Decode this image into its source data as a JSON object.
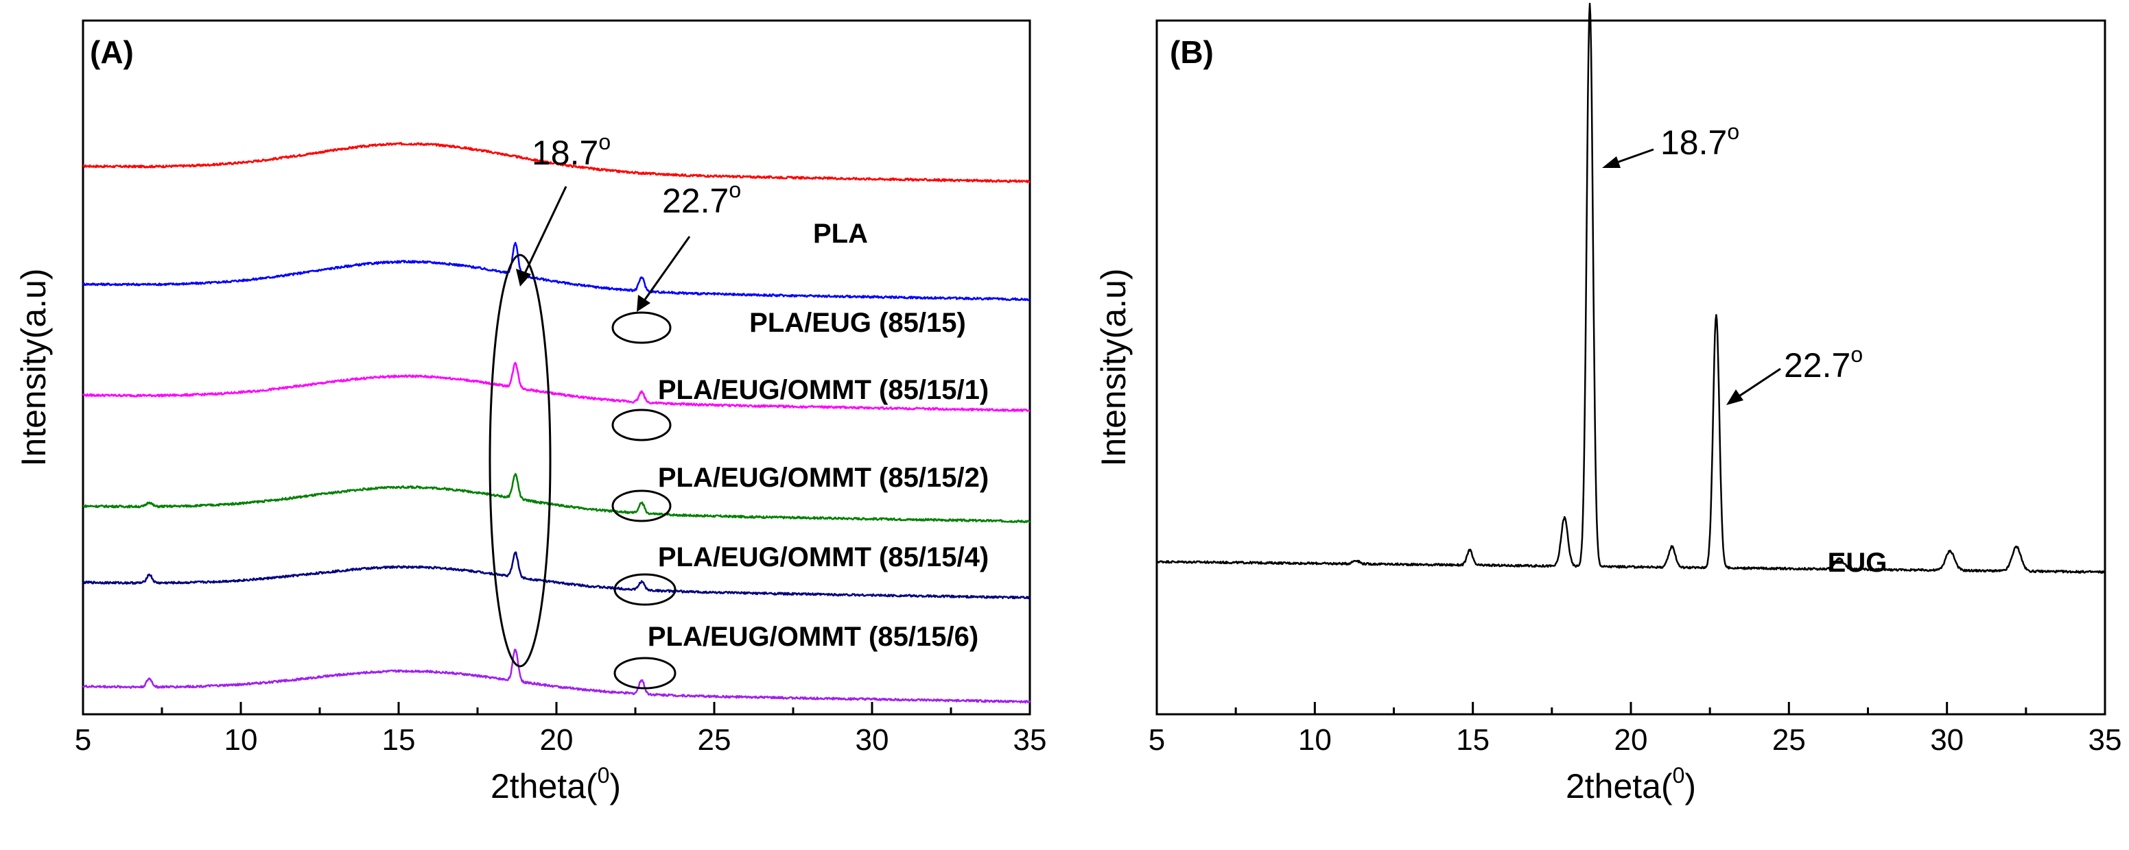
{
  "chart_data": [
    {
      "panel": "(A)",
      "type": "line",
      "xlabel": "2theta(",
      "xlabel_sup": "0",
      "xlabel_close": ")",
      "ylabel": "Intensity(a.u)",
      "xlim": [
        5,
        35
      ],
      "ylim": [
        0,
        10
      ],
      "xticks": [
        5,
        10,
        15,
        20,
        25,
        30,
        35
      ],
      "xtick_labels": [
        "5",
        "10",
        "15",
        "20",
        "25",
        "30",
        "35"
      ],
      "series": [
        {
          "name": "PLA",
          "color": "#ff0000",
          "baseline": 7.9,
          "drift": 0.22,
          "hump": 0.4,
          "peaks": []
        },
        {
          "name": "PLA/EUG (85/15)",
          "color": "#0000ff",
          "baseline": 6.2,
          "drift": 0.22,
          "hump": 0.4,
          "peaks": [
            {
              "x": 18.7,
              "h": 0.45
            },
            {
              "x": 22.7,
              "h": 0.2
            }
          ]
        },
        {
          "name": "PLA/EUG/OMMT (85/15/1)",
          "color": "#ff00ff",
          "baseline": 4.6,
          "drift": 0.22,
          "hump": 0.35,
          "peaks": [
            {
              "x": 18.7,
              "h": 0.35
            },
            {
              "x": 22.7,
              "h": 0.15
            }
          ]
        },
        {
          "name": "PLA/EUG/OMMT (85/15/2)",
          "color": "#008000",
          "baseline": 3.0,
          "drift": 0.22,
          "hump": 0.35,
          "peaks": [
            {
              "x": 7.1,
              "h": 0.06
            },
            {
              "x": 18.7,
              "h": 0.35
            },
            {
              "x": 22.7,
              "h": 0.15
            }
          ]
        },
        {
          "name": "PLA/EUG/OMMT (85/15/4)",
          "color": "#000080",
          "baseline": 1.9,
          "drift": 0.22,
          "hump": 0.3,
          "peaks": [
            {
              "x": 7.1,
              "h": 0.12
            },
            {
              "x": 18.7,
              "h": 0.35
            },
            {
              "x": 22.7,
              "h": 0.12
            }
          ]
        },
        {
          "name": "PLA/EUG/OMMT (85/15/6)",
          "color": "#a020f0",
          "baseline": 0.4,
          "drift": 0.22,
          "hump": 0.3,
          "peaks": [
            {
              "x": 7.1,
              "h": 0.12
            },
            {
              "x": 18.7,
              "h": 0.45
            },
            {
              "x": 22.7,
              "h": 0.2
            }
          ]
        }
      ],
      "annotations": [
        {
          "text": "18.7",
          "sup": "o",
          "x": 18.7
        },
        {
          "text": "22.7",
          "sup": "o",
          "x": 22.7
        }
      ]
    },
    {
      "panel": "(B)",
      "type": "line",
      "xlabel": "2theta(",
      "xlabel_sup": "0",
      "xlabel_close": ")",
      "ylabel": "Intensity(a.u)",
      "xlim": [
        5,
        35
      ],
      "ylim": [
        0,
        10
      ],
      "xticks": [
        5,
        10,
        15,
        20,
        25,
        30,
        35
      ],
      "xtick_labels": [
        "5",
        "10",
        "15",
        "20",
        "25",
        "30",
        "35"
      ],
      "series": [
        {
          "name": "EUG",
          "color": "#000000",
          "baseline": 2.2,
          "drift": 0.15,
          "peaks": [
            {
              "x": 11.3,
              "h": 0.05,
              "w": 0.15
            },
            {
              "x": 14.9,
              "h": 0.22,
              "w": 0.12
            },
            {
              "x": 17.9,
              "h": 0.7,
              "w": 0.15
            },
            {
              "x": 18.7,
              "h": 8.1,
              "w": 0.14
            },
            {
              "x": 21.3,
              "h": 0.3,
              "w": 0.15
            },
            {
              "x": 22.7,
              "h": 3.65,
              "w": 0.14
            },
            {
              "x": 26.6,
              "h": 0.15,
              "w": 0.2
            },
            {
              "x": 30.1,
              "h": 0.28,
              "w": 0.2
            },
            {
              "x": 32.2,
              "h": 0.35,
              "w": 0.2
            }
          ]
        }
      ],
      "annotations": [
        {
          "text": "18.7",
          "sup": "o",
          "x": 18.7
        },
        {
          "text": "22.7",
          "sup": "o",
          "x": 22.7
        }
      ]
    }
  ]
}
